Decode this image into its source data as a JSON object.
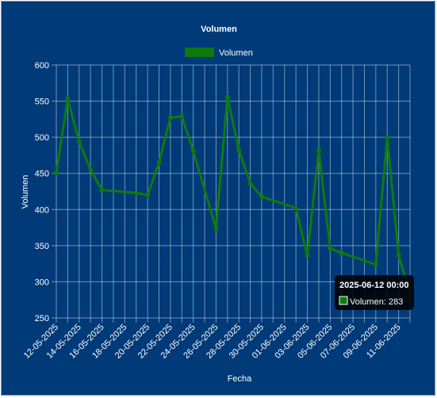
{
  "chart_data": {
    "type": "line",
    "title": "Volumen",
    "xlabel": "Fecha",
    "ylabel": "Volumen",
    "ylim": [
      250,
      600
    ],
    "yticks": [
      250,
      300,
      350,
      400,
      450,
      500,
      550,
      600
    ],
    "xlim": [
      "2025-05-12",
      "2025-06-12"
    ],
    "xtick_labels": [
      "12-05-2025",
      "14-05-2025",
      "16-05-2025",
      "18-05-2025",
      "20-05-2025",
      "22-05-2025",
      "24-05-2025",
      "26-05-2025",
      "28-05-2025",
      "30-05-2025",
      "01-06-2025",
      "03-06-2025",
      "05-06-2025",
      "07-06-2025",
      "09-06-2025",
      "11-06-2025"
    ],
    "grid": true,
    "legend_position": "top-center",
    "series": [
      {
        "name": "Volumen",
        "color": "#0e7a0e",
        "points": [
          {
            "x": "2025-05-12",
            "y": 451
          },
          {
            "x": "2025-05-13",
            "y": 553
          },
          {
            "x": "2025-05-14",
            "y": 494
          },
          {
            "x": "2025-05-15",
            "y": 455
          },
          {
            "x": "2025-05-16",
            "y": 427
          },
          {
            "x": "2025-05-19",
            "y": 423
          },
          {
            "x": "2025-05-20",
            "y": 420
          },
          {
            "x": "2025-05-21",
            "y": 465
          },
          {
            "x": "2025-05-22",
            "y": 527
          },
          {
            "x": "2025-05-23",
            "y": 529
          },
          {
            "x": "2025-05-24",
            "y": 481
          },
          {
            "x": "2025-05-26",
            "y": 374
          },
          {
            "x": "2025-05-27",
            "y": 556
          },
          {
            "x": "2025-05-28",
            "y": 482
          },
          {
            "x": "2025-05-29",
            "y": 436
          },
          {
            "x": "2025-05-30",
            "y": 418
          },
          {
            "x": "2025-06-02",
            "y": 402
          },
          {
            "x": "2025-06-03",
            "y": 336
          },
          {
            "x": "2025-06-04",
            "y": 482
          },
          {
            "x": "2025-06-05",
            "y": 346
          },
          {
            "x": "2025-06-06",
            "y": 340
          },
          {
            "x": "2025-06-09",
            "y": 324
          },
          {
            "x": "2025-06-10",
            "y": 500
          },
          {
            "x": "2025-06-11",
            "y": 337
          },
          {
            "x": "2025-06-12",
            "y": 283
          }
        ]
      }
    ]
  },
  "tooltip": {
    "title": "2025-06-12 00:00",
    "label": "Volumen: 283"
  }
}
